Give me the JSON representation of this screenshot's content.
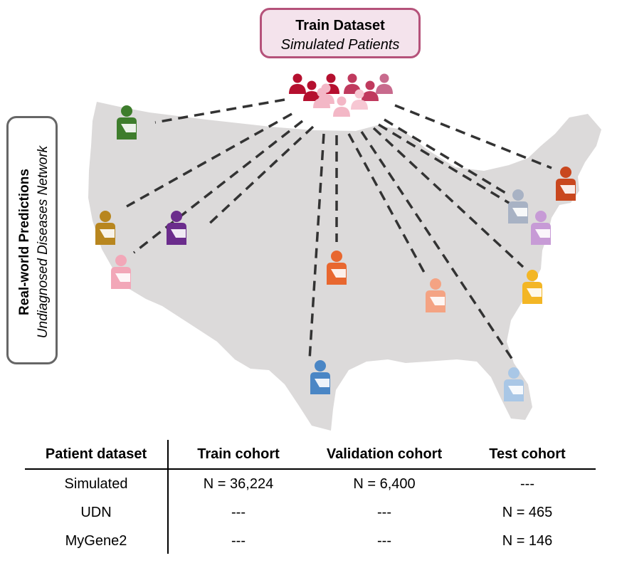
{
  "train_box": {
    "title": "Train Dataset",
    "subtitle": "Simulated Patients"
  },
  "real_world": {
    "title": "Real-world Predictions",
    "subtitle": "Undiagnosed Diseases Network"
  },
  "patient_icons": [
    {
      "name": "patient-icon-washington",
      "color": "#3e7d2c"
    },
    {
      "name": "patient-icon-northern-california",
      "color": "#b8861f"
    },
    {
      "name": "patient-icon-nevada",
      "color": "#6b2c8c"
    },
    {
      "name": "patient-icon-southern-california",
      "color": "#f2a7b8"
    },
    {
      "name": "patient-icon-texas",
      "color": "#4a86c5"
    },
    {
      "name": "patient-icon-central",
      "color": "#e8672f"
    },
    {
      "name": "patient-icon-southeast",
      "color": "#f4a383"
    },
    {
      "name": "patient-icon-florida",
      "color": "#a9c7e6"
    },
    {
      "name": "patient-icon-carolina",
      "color": "#f3b625"
    },
    {
      "name": "patient-icon-pennsylvania",
      "color": "#a8b2c4"
    },
    {
      "name": "patient-icon-maryland",
      "color": "#c79bd6"
    },
    {
      "name": "patient-icon-new-england",
      "color": "#c9471e"
    }
  ],
  "group_colors": [
    "#b5102f",
    "#c03a5e",
    "#c86a8d",
    "#f3b7c6",
    "#f7c7d3"
  ],
  "map_color": "#dcdada",
  "table": {
    "headers": [
      "Patient dataset",
      "Train cohort",
      "Validation cohort",
      "Test cohort"
    ],
    "rows": [
      [
        "Simulated",
        "N = 36,224",
        "N = 6,400",
        "---"
      ],
      [
        "UDN",
        "---",
        "---",
        "N = 465"
      ],
      [
        "MyGene2",
        "---",
        "---",
        "N = 146"
      ]
    ]
  }
}
